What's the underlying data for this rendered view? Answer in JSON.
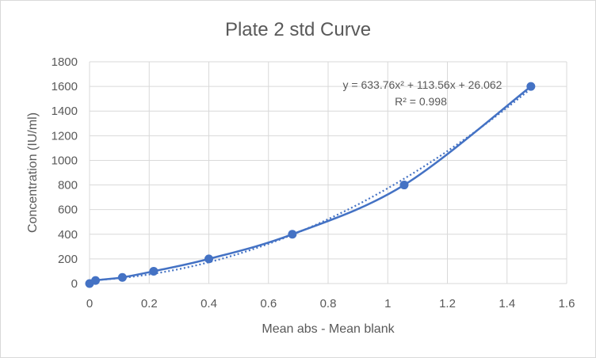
{
  "chart_data": {
    "type": "scatter",
    "title": "Plate 2 std Curve",
    "xlabel": "Mean abs - Mean blank",
    "ylabel": "Concentration (IU/ml)",
    "xlim": [
      0,
      1.6
    ],
    "ylim": [
      0,
      1800
    ],
    "x_ticks": [
      "0",
      "0.2",
      "0.4",
      "0.6",
      "0.8",
      "1",
      "1.2",
      "1.4",
      "1.6"
    ],
    "y_ticks": [
      "0",
      "200",
      "400",
      "600",
      "800",
      "1000",
      "1200",
      "1400",
      "1600",
      "1800"
    ],
    "grid": true,
    "series": [
      {
        "x": [
          0,
          0.02,
          0.11,
          0.215,
          0.4,
          0.68,
          1.055,
          1.48
        ],
        "y": [
          0,
          25,
          50,
          100,
          200,
          400,
          800,
          1600
        ],
        "marker": "circle",
        "color": "#4472c4"
      }
    ],
    "smooth_line": {
      "style": "solid",
      "color": "#4472c4"
    },
    "trendline": {
      "type": "polynomial",
      "order": 2,
      "coefficients": [
        633.76,
        113.56,
        26.062
      ],
      "style": "dotted",
      "color": "#4472c4",
      "equation_label": "y = 633.76x² + 113.56x + 26.062",
      "r2_label": "R² = 0.998"
    }
  }
}
